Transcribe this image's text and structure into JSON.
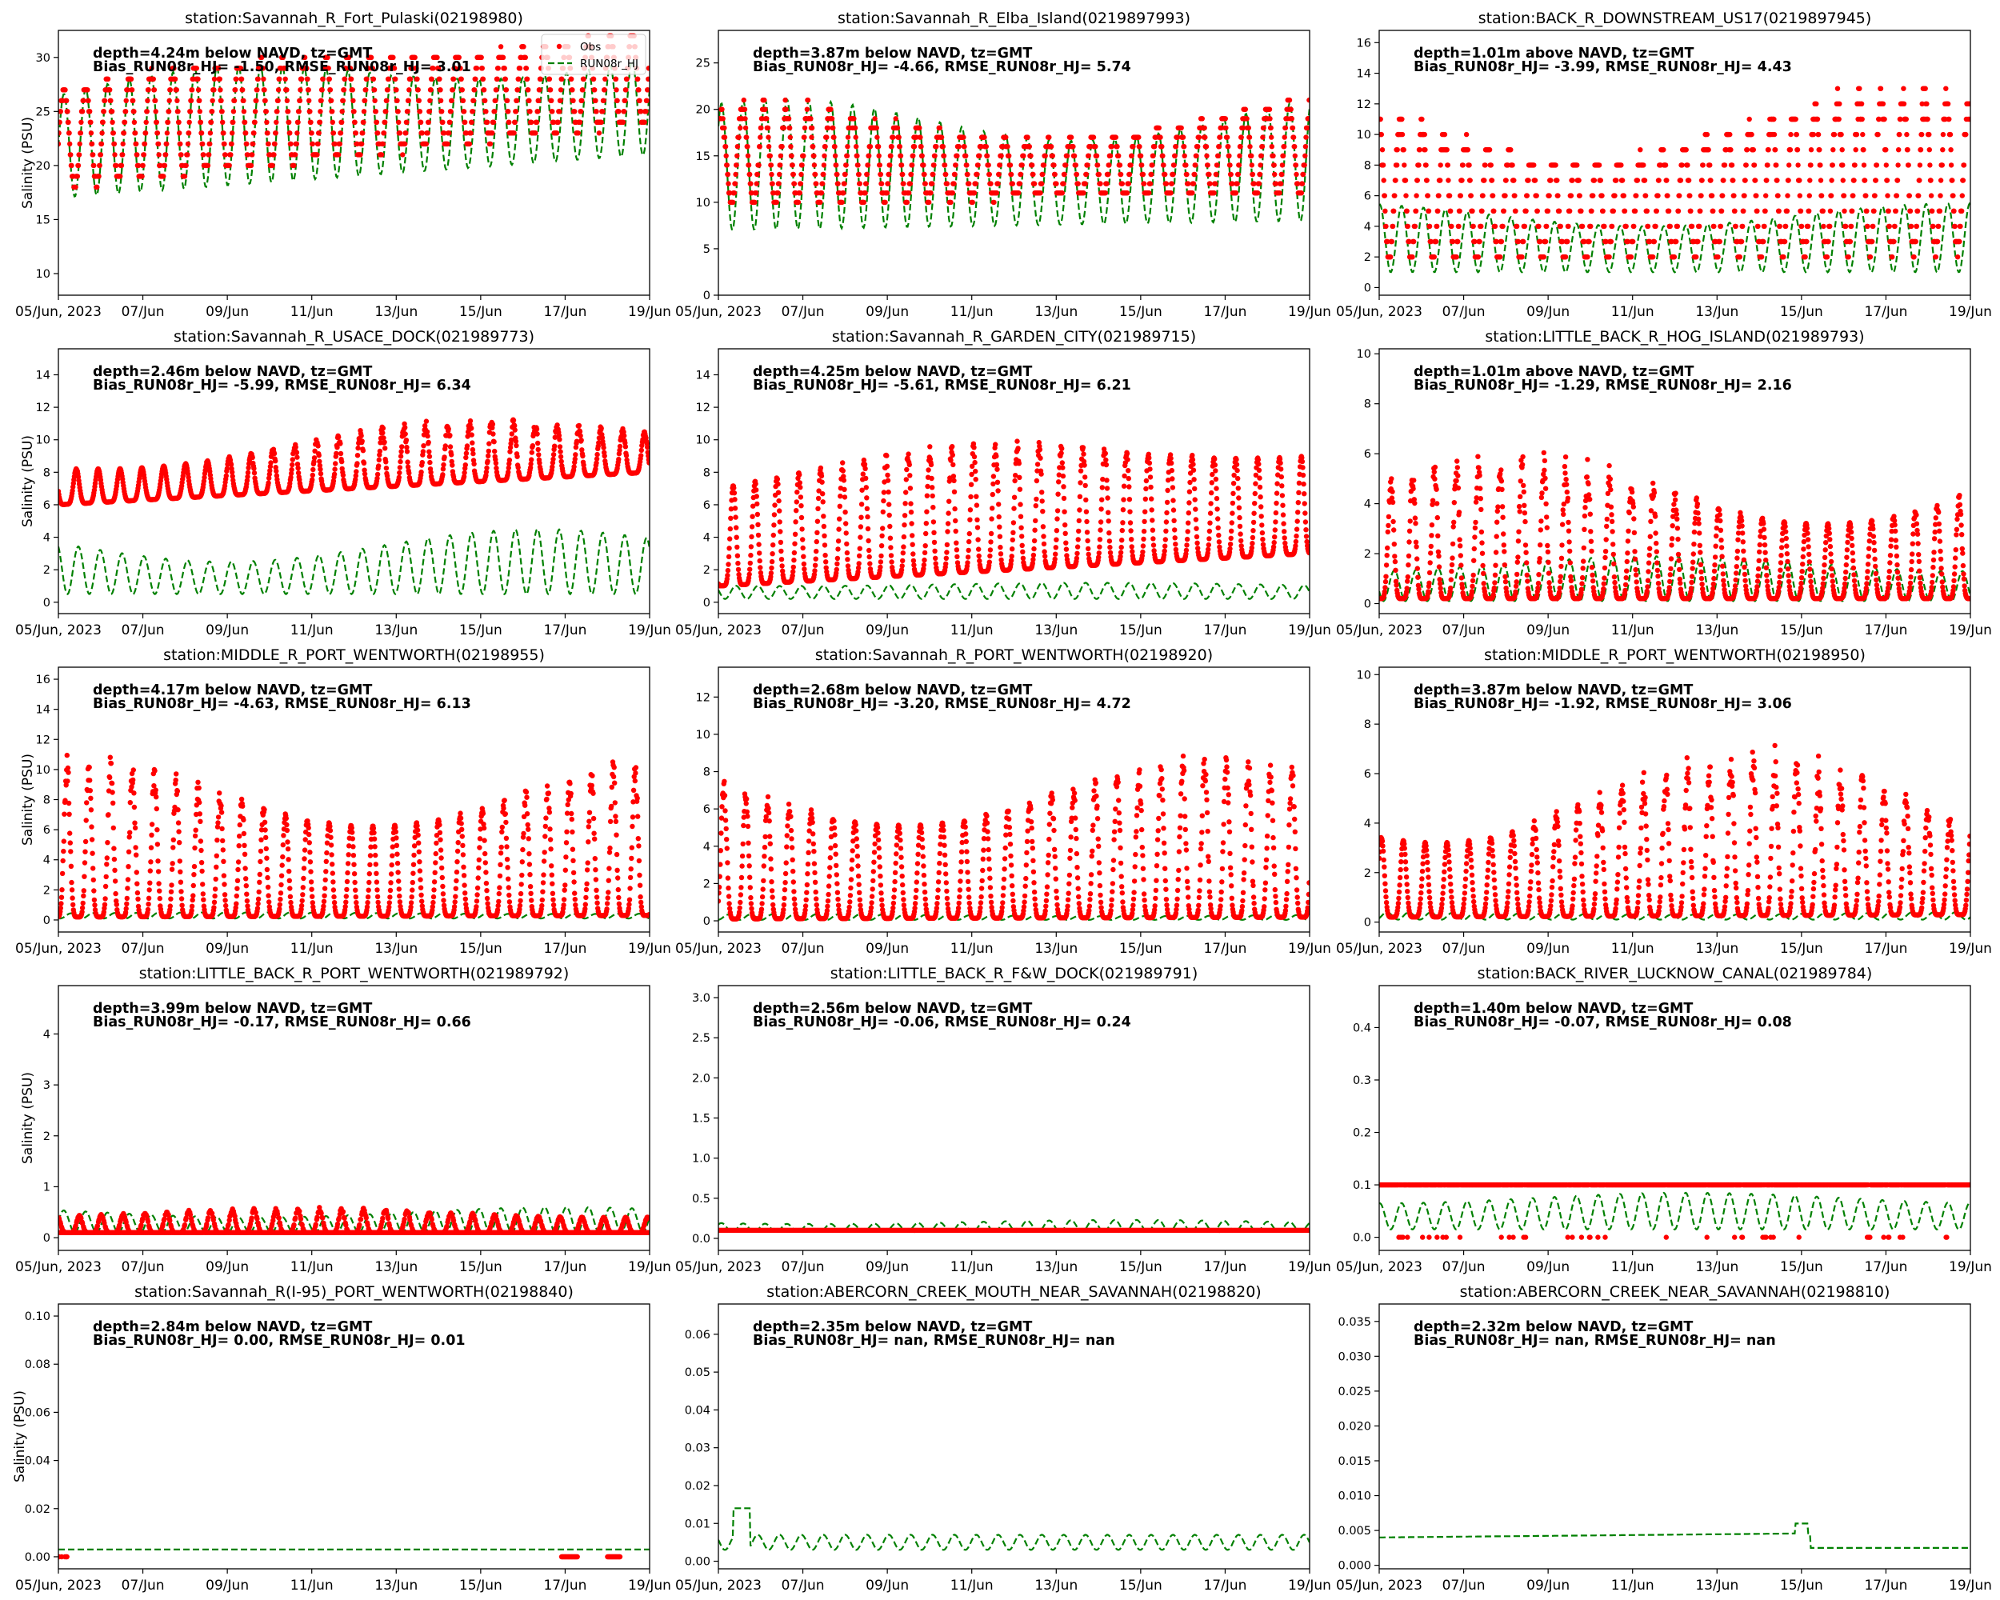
{
  "figure": {
    "x_tick_labels": [
      "05/Jun, 2023",
      "07/Jun",
      "09/Jun",
      "11/Jun",
      "13/Jun",
      "15/Jun",
      "17/Jun",
      "19/Jun"
    ],
    "ylabel": "Salinity (PSU)",
    "legend": {
      "obs_label": "Obs",
      "model_label": "RUN08r_HJ",
      "placement": "upper-right of first panel"
    },
    "colors": {
      "obs": "#ff0000",
      "model": "#008000"
    }
  },
  "chart_data": [
    {
      "type": "scatter",
      "title": "station:Savannah_R_Fort_Pulaski(02198980)",
      "ann1": "depth=4.24m below NAVD, tz=GMT",
      "ann2": "Bias_RUN08r_HJ= -1.50, RMSE_RUN08r_HJ=  3.01",
      "ylabel": "Salinity (PSU)",
      "ylim": [
        8,
        32.5
      ],
      "yticks": [
        10,
        15,
        20,
        25,
        30
      ],
      "xlim": [
        "2023-06-05",
        "2023-06-19"
      ],
      "obs": {
        "base": [
          18,
          24
        ],
        "amp": [
          8,
          10
        ],
        "quant": 1
      },
      "model": {
        "base": [
          17,
          21
        ],
        "amp": [
          8,
          11
        ]
      },
      "legend": true
    },
    {
      "type": "scatter",
      "title": "station:Savannah_R_Elba_Island(0219897993)",
      "ann1": "depth=3.87m below NAVD, tz=GMT",
      "ann2": "Bias_RUN08r_HJ= -4.66, RMSE_RUN08r_HJ=  5.74",
      "ylabel": "",
      "ylim": [
        0,
        28.5
      ],
      "yticks": [
        0,
        5,
        10,
        15,
        20,
        25
      ],
      "xlim": [
        "2023-06-05",
        "2023-06-19"
      ],
      "obs": {
        "base": [
          10,
          11
        ],
        "amp": [
          6,
          11
        ],
        "quant": 1
      },
      "model": {
        "base": [
          7,
          8
        ],
        "amp": [
          9,
          14
        ]
      },
      "legend": false
    },
    {
      "type": "scatter",
      "title": "station:BACK_R_DOWNSTREAM_US17(0219897945)",
      "ann1": "depth=1.01m above NAVD, tz=GMT",
      "ann2": "Bias_RUN08r_HJ= -3.99, RMSE_RUN08r_HJ=  4.43",
      "ylabel": "",
      "ylim": [
        -0.5,
        16.8
      ],
      "yticks": [
        0,
        2,
        4,
        6,
        8,
        10,
        12,
        14,
        16
      ],
      "xlim": [
        "2023-06-05",
        "2023-06-19"
      ],
      "obs": {
        "base": [
          2,
          2.5
        ],
        "amp": [
          6,
          11
        ],
        "quant": 1
      },
      "model": {
        "base": [
          1,
          1
        ],
        "amp": [
          3,
          4.5
        ]
      },
      "legend": false
    },
    {
      "type": "scatter",
      "title": "station:Savannah_R_USACE_DOCK(021989773)",
      "ann1": "depth=2.46m below NAVD, tz=GMT",
      "ann2": "Bias_RUN08r_HJ= -5.99, RMSE_RUN08r_HJ=  6.34",
      "ylabel": "Salinity (PSU)",
      "ylim": [
        -0.7,
        15.6
      ],
      "yticks": [
        0,
        2,
        4,
        6,
        8,
        10,
        12,
        14
      ],
      "xlim": [
        "2023-06-05",
        "2023-06-19"
      ],
      "obs": {
        "base": [
          6,
          8
        ],
        "amp": [
          2,
          4
        ],
        "quant": 0
      },
      "model": {
        "base": [
          0.5,
          0.5
        ],
        "amp": [
          2,
          4
        ]
      },
      "legend": false
    },
    {
      "type": "scatter",
      "title": "station:Savannah_R_GARDEN_CITY(021989715)",
      "ann1": "depth=4.25m below NAVD, tz=GMT",
      "ann2": "Bias_RUN08r_HJ= -5.61, RMSE_RUN08r_HJ=  6.21",
      "ylabel": "",
      "ylim": [
        -0.7,
        15.6
      ],
      "yticks": [
        0,
        2,
        4,
        6,
        8,
        10,
        12,
        14
      ],
      "xlim": [
        "2023-06-05",
        "2023-06-19"
      ],
      "obs": {
        "base": [
          1,
          3
        ],
        "amp": [
          6,
          8
        ],
        "quant": 0
      },
      "model": {
        "base": [
          0.2,
          0.2
        ],
        "amp": [
          0.8,
          1
        ]
      },
      "legend": false
    },
    {
      "type": "scatter",
      "title": "station:LITTLE_BACK_R_HOG_ISLAND(021989793)",
      "ann1": "depth=1.01m above NAVD, tz=GMT",
      "ann2": "Bias_RUN08r_HJ= -1.29, RMSE_RUN08r_HJ=  2.16",
      "ylabel": "",
      "ylim": [
        -0.4,
        10.2
      ],
      "yticks": [
        0,
        2,
        4,
        6,
        8,
        10
      ],
      "xlim": [
        "2023-06-05",
        "2023-06-19"
      ],
      "obs": {
        "base": [
          0.2,
          0.2
        ],
        "amp": [
          3,
          6
        ],
        "quant": 0
      },
      "model": {
        "base": [
          0.1,
          0.1
        ],
        "amp": [
          1.2,
          1.8
        ]
      },
      "legend": false
    },
    {
      "type": "scatter",
      "title": "station:MIDDLE_R_PORT_WENTWORTH(02198955)",
      "ann1": "depth=4.17m below NAVD, tz=GMT",
      "ann2": "Bias_RUN08r_HJ= -4.63, RMSE_RUN08r_HJ=  6.13",
      "ylabel": "Salinity (PSU)",
      "ylim": [
        -0.8,
        16.8
      ],
      "yticks": [
        0,
        2,
        4,
        6,
        8,
        10,
        12,
        14,
        16
      ],
      "xlim": [
        "2023-06-05",
        "2023-06-19"
      ],
      "obs": {
        "base": [
          0.2,
          0.3
        ],
        "amp": [
          6,
          11
        ],
        "quant": 0
      },
      "model": {
        "base": [
          0.1,
          0.1
        ],
        "amp": [
          0.3,
          0.4
        ]
      },
      "legend": false
    },
    {
      "type": "scatter",
      "title": "station:Savannah_R_PORT_WENTWORTH(02198920)",
      "ann1": "depth=2.68m below NAVD, tz=GMT",
      "ann2": "Bias_RUN08r_HJ= -3.20, RMSE_RUN08r_HJ=  4.72",
      "ylabel": "",
      "ylim": [
        -0.6,
        13.6
      ],
      "yticks": [
        0,
        2,
        4,
        6,
        8,
        10,
        12
      ],
      "xlim": [
        "2023-06-05",
        "2023-06-19"
      ],
      "obs": {
        "base": [
          0.1,
          0.2
        ],
        "amp": [
          5,
          9
        ],
        "quant": 0
      },
      "model": {
        "base": [
          0.05,
          0.05
        ],
        "amp": [
          0.2,
          0.3
        ]
      },
      "legend": false
    },
    {
      "type": "scatter",
      "title": "station:MIDDLE_R_PORT_WENTWORTH(02198950)",
      "ann1": "depth=3.87m below NAVD, tz=GMT",
      "ann2": "Bias_RUN08r_HJ= -1.92, RMSE_RUN08r_HJ=  3.06",
      "ylabel": "",
      "ylim": [
        -0.4,
        10.3
      ],
      "yticks": [
        0,
        2,
        4,
        6,
        8,
        10
      ],
      "xlim": [
        "2023-06-05",
        "2023-06-19"
      ],
      "obs": {
        "base": [
          0.2,
          0.3
        ],
        "amp": [
          3,
          7
        ],
        "quant": 0
      },
      "model": {
        "base": [
          0.1,
          0.1
        ],
        "amp": [
          0.2,
          0.3
        ]
      },
      "legend": false
    },
    {
      "type": "scatter",
      "title": "station:LITTLE_BACK_R_PORT_WENTWORTH(021989792)",
      "ann1": "depth=3.99m below NAVD, tz=GMT",
      "ann2": "Bias_RUN08r_HJ= -0.17, RMSE_RUN08r_HJ=  0.66",
      "ylabel": "Salinity (PSU)",
      "ylim": [
        -0.25,
        4.95
      ],
      "yticks": [
        0,
        1,
        2,
        3,
        4
      ],
      "xlim": [
        "2023-06-05",
        "2023-06-19"
      ],
      "obs": {
        "base": [
          0.1,
          0.1
        ],
        "amp": [
          0.3,
          0.5
        ],
        "quant": 0
      },
      "model": {
        "base": [
          0.1,
          0.1
        ],
        "amp": [
          0.3,
          0.5
        ]
      },
      "legend": false
    },
    {
      "type": "scatter",
      "title": "station:LITTLE_BACK_R_F&W_DOCK(021989791)",
      "ann1": "depth=2.56m below NAVD, tz=GMT",
      "ann2": "Bias_RUN08r_HJ= -0.06, RMSE_RUN08r_HJ=  0.24",
      "ylabel": "",
      "ylim": [
        -0.15,
        3.15
      ],
      "yticks": [
        0,
        0.5,
        1.0,
        1.5,
        2.0,
        2.5,
        3.0
      ],
      "xlim": [
        "2023-06-05",
        "2023-06-19"
      ],
      "obs": {
        "base": [
          0.1,
          0.1
        ],
        "amp": [
          0,
          0
        ],
        "quant": 0
      },
      "model": {
        "base": [
          0.08,
          0.08
        ],
        "amp": [
          0.1,
          0.15
        ]
      },
      "legend": false
    },
    {
      "type": "scatter",
      "title": "station:BACK_RIVER_LUCKNOW_CANAL(021989784)",
      "ann1": "depth=1.40m below NAVD, tz=GMT",
      "ann2": "Bias_RUN08r_HJ= -0.07, RMSE_RUN08r_HJ=  0.08",
      "ylabel": "",
      "ylim": [
        -0.025,
        0.48
      ],
      "yticks": [
        0,
        0.1,
        0.2,
        0.3,
        0.4
      ],
      "xlim": [
        "2023-06-05",
        "2023-06-19"
      ],
      "obs": {
        "base": [
          0.1,
          0.1
        ],
        "amp": [
          0,
          0
        ],
        "quant": 0
      },
      "model": {
        "base": [
          0.015,
          0.015
        ],
        "amp": [
          0.05,
          0.07
        ]
      },
      "legend": false
    },
    {
      "type": "scatter",
      "title": "station:Savannah_R(I-95)_PORT_WENTWORTH(02198840)",
      "ann1": "depth=2.84m below NAVD, tz=GMT",
      "ann2": "Bias_RUN08r_HJ=  0.00, RMSE_RUN08r_HJ=  0.01",
      "ylabel": "Salinity (PSU)",
      "ylim": [
        -0.005,
        0.105
      ],
      "yticks": [
        0,
        0.02,
        0.04,
        0.06,
        0.08,
        0.1
      ],
      "xlim": [
        "2023-06-05",
        "2023-06-19"
      ],
      "obs": {
        "base": [
          0,
          0
        ],
        "amp": [
          0,
          0
        ],
        "quant": 0
      },
      "model": {
        "base": [
          0.003,
          0.003
        ],
        "amp": [
          0,
          0
        ]
      },
      "legend": false
    },
    {
      "type": "line",
      "title": "station:ABERCORN_CREEK_MOUTH_NEAR_SAVANNAH(02198820)",
      "ann1": "depth=2.35m below NAVD, tz=GMT",
      "ann2": "Bias_RUN08r_HJ=   nan, RMSE_RUN08r_HJ=   nan",
      "ylabel": "",
      "ylim": [
        -0.002,
        0.068
      ],
      "yticks": [
        0,
        0.01,
        0.02,
        0.03,
        0.04,
        0.05,
        0.06
      ],
      "xlim": [
        "2023-06-05",
        "2023-06-19"
      ],
      "obs": null,
      "model": {
        "base": [
          0.003,
          0.003
        ],
        "amp": [
          0.004,
          0.004
        ]
      },
      "legend": false
    },
    {
      "type": "line",
      "title": "station:ABERCORN_CREEK_NEAR_SAVANNAH(02198810)",
      "ann1": "depth=2.32m below NAVD, tz=GMT",
      "ann2": "Bias_RUN08r_HJ=   nan, RMSE_RUN08r_HJ=   nan",
      "ylabel": "",
      "ylim": [
        -0.0005,
        0.0375
      ],
      "yticks": [
        0,
        0.005,
        0.01,
        0.015,
        0.02,
        0.025,
        0.03,
        0.035
      ],
      "xlim": [
        "2023-06-05",
        "2023-06-19"
      ],
      "obs": null,
      "model": {
        "base": [
          0.004,
          0.0048
        ],
        "amp": [
          0,
          0
        ]
      },
      "legend": false
    }
  ]
}
